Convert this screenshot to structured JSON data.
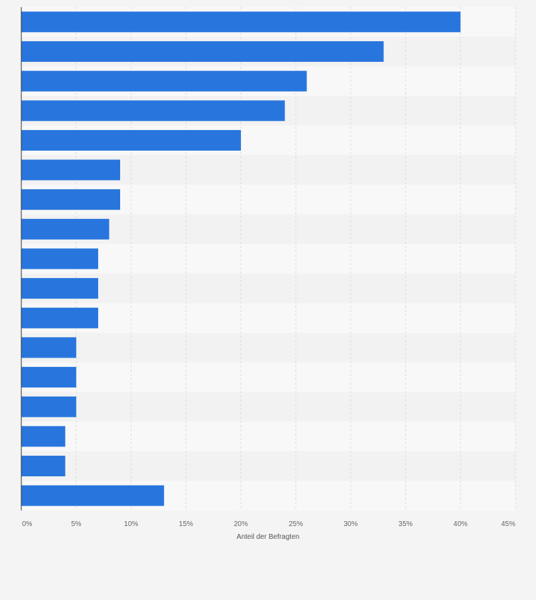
{
  "chart_data": {
    "type": "bar",
    "orientation": "horizontal",
    "title": "",
    "xlabel": "Anteil der Befragten",
    "ylabel": "",
    "categories": [
      "",
      "",
      "",
      "",
      "",
      "",
      "",
      "",
      "",
      "",
      "",
      "",
      "",
      "",
      "",
      "",
      ""
    ],
    "values": [
      40,
      33,
      26,
      24,
      20,
      9,
      9,
      8,
      7,
      7,
      7,
      5,
      5,
      5,
      4,
      4,
      13
    ],
    "xlim": [
      0,
      45
    ],
    "ticks": [
      0,
      5,
      10,
      15,
      20,
      25,
      30,
      35,
      40,
      45
    ],
    "tick_labels": [
      "0%",
      "5%",
      "10%",
      "15%",
      "20%",
      "25%",
      "30%",
      "35%",
      "40%",
      "45%"
    ],
    "value_unit": "%",
    "grid": true,
    "bar_color": "#2876dd",
    "band_colors": [
      "#f8f8f8",
      "#f2f2f2"
    ],
    "plot_background": "#f8f8f8",
    "gridline_color": "#dcdcdc",
    "axis_color": "#333333",
    "tick_label_color": "#666666"
  }
}
